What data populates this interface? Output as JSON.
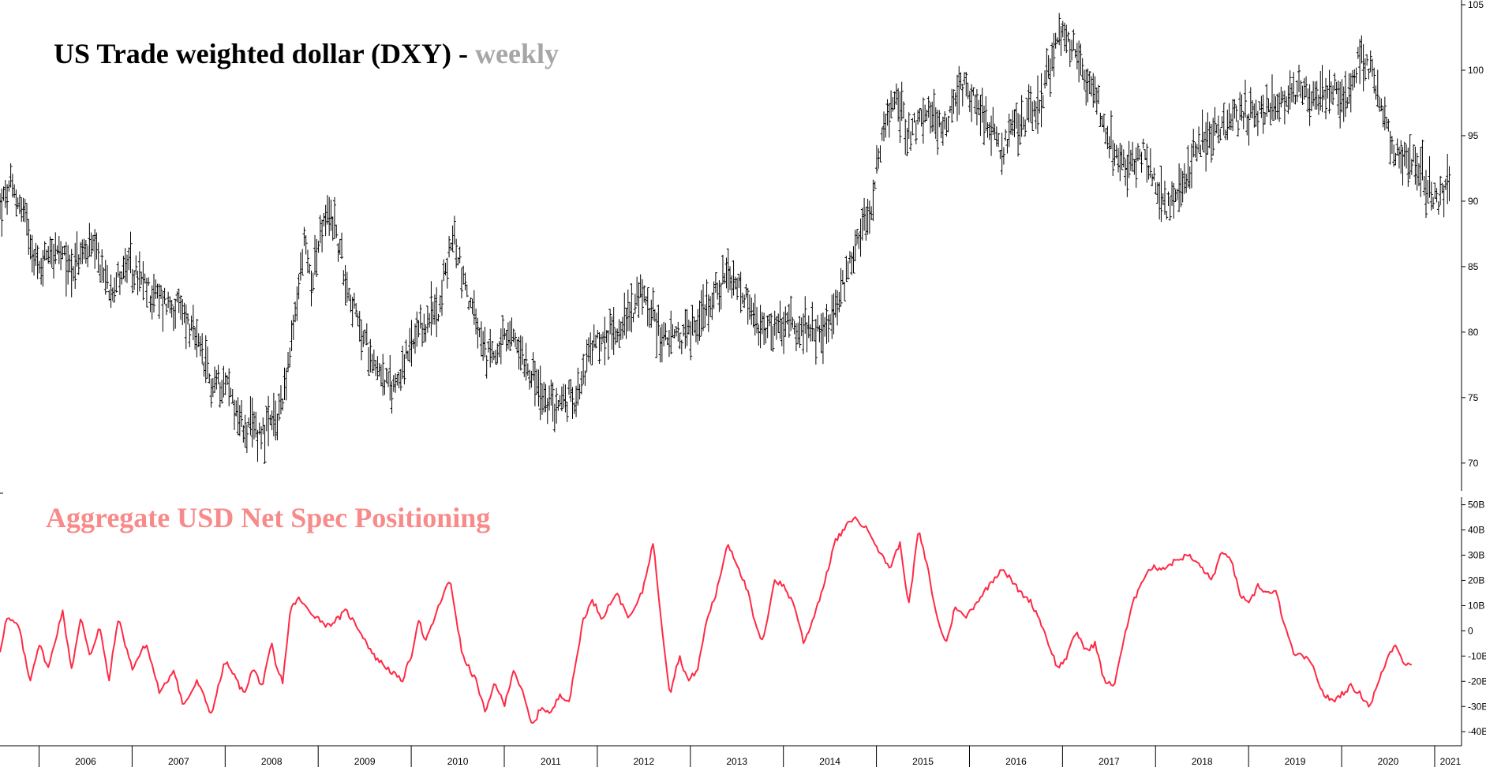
{
  "upper_title": {
    "main": "US Trade weighted dollar (DXY) - ",
    "suffix": "weekly"
  },
  "lower_title": "Aggregate USD Net Spec Positioning",
  "colors": {
    "price": "#000000",
    "positioning": "#ff2a45",
    "title_suffix": "#a6a6a6",
    "lower_title": "#f88a8a",
    "axis": "#000000"
  },
  "chart_data": [
    {
      "type": "ohlc",
      "title": "US Trade weighted dollar (DXY) - weekly",
      "frequency": "weekly",
      "ylim": [
        68,
        105
      ],
      "y_ticks": [
        "70",
        "75",
        "80",
        "85",
        "90",
        "95",
        "100",
        "105"
      ],
      "x_start": 2005.58,
      "x_end": 2021.17,
      "anchors": [
        [
          2005.58,
          89.5
        ],
        [
          2005.7,
          91.0
        ],
        [
          2005.85,
          89.0
        ],
        [
          2006.0,
          84.5
        ],
        [
          2006.1,
          86.5
        ],
        [
          2006.35,
          85.0
        ],
        [
          2006.55,
          86.5
        ],
        [
          2006.75,
          83.5
        ],
        [
          2006.95,
          85.0
        ],
        [
          2007.2,
          83.0
        ],
        [
          2007.45,
          82.0
        ],
        [
          2007.55,
          81.5
        ],
        [
          2007.7,
          79.0
        ],
        [
          2007.85,
          76.0
        ],
        [
          2008.0,
          76.5
        ],
        [
          2008.2,
          72.5
        ],
        [
          2008.4,
          72.5
        ],
        [
          2008.55,
          73.0
        ],
        [
          2008.7,
          78.0
        ],
        [
          2008.85,
          87.0
        ],
        [
          2008.92,
          84.0
        ],
        [
          2009.05,
          88.0
        ],
        [
          2009.15,
          89.0
        ],
        [
          2009.3,
          84.0
        ],
        [
          2009.45,
          80.0
        ],
        [
          2009.6,
          78.0
        ],
        [
          2009.78,
          75.5
        ],
        [
          2009.92,
          77.5
        ],
        [
          2010.1,
          80.0
        ],
        [
          2010.3,
          82.0
        ],
        [
          2010.45,
          87.5
        ],
        [
          2010.62,
          82.5
        ],
        [
          2010.8,
          78.0
        ],
        [
          2010.95,
          79.0
        ],
        [
          2011.1,
          79.5
        ],
        [
          2011.3,
          77.0
        ],
        [
          2011.42,
          74.5
        ],
        [
          2011.55,
          74.5
        ],
        [
          2011.75,
          75.0
        ],
        [
          2011.95,
          79.0
        ],
        [
          2012.1,
          79.5
        ],
        [
          2012.3,
          81.0
        ],
        [
          2012.5,
          83.0
        ],
        [
          2012.7,
          79.5
        ],
        [
          2012.9,
          79.5
        ],
        [
          2013.1,
          81.0
        ],
        [
          2013.25,
          83.0
        ],
        [
          2013.4,
          84.0
        ],
        [
          2013.55,
          83.0
        ],
        [
          2013.75,
          80.0
        ],
        [
          2014.0,
          80.5
        ],
        [
          2014.3,
          79.8
        ],
        [
          2014.5,
          80.5
        ],
        [
          2014.62,
          83.0
        ],
        [
          2014.8,
          87.5
        ],
        [
          2014.95,
          89.5
        ],
        [
          2015.05,
          94.5
        ],
        [
          2015.2,
          98.0
        ],
        [
          2015.35,
          95.5
        ],
        [
          2015.55,
          96.5
        ],
        [
          2015.75,
          96.0
        ],
        [
          2015.9,
          99.0
        ],
        [
          2016.1,
          97.5
        ],
        [
          2016.35,
          94.0
        ],
        [
          2016.55,
          96.0
        ],
        [
          2016.75,
          97.5
        ],
        [
          2016.92,
          101.5
        ],
        [
          2017.0,
          103.0
        ],
        [
          2017.15,
          101.0
        ],
        [
          2017.35,
          98.5
        ],
        [
          2017.55,
          93.5
        ],
        [
          2017.7,
          92.5
        ],
        [
          2017.85,
          94.0
        ],
        [
          2017.95,
          92.5
        ],
        [
          2018.1,
          89.5
        ],
        [
          2018.2,
          90.0
        ],
        [
          2018.3,
          91.0
        ],
        [
          2018.45,
          94.5
        ],
        [
          2018.65,
          95.0
        ],
        [
          2018.85,
          96.5
        ],
        [
          2019.1,
          96.5
        ],
        [
          2019.3,
          97.5
        ],
        [
          2019.5,
          98.5
        ],
        [
          2019.7,
          98.0
        ],
        [
          2019.9,
          98.5
        ],
        [
          2020.0,
          97.5
        ],
        [
          2020.1,
          99.0
        ],
        [
          2020.2,
          101.0
        ],
        [
          2020.32,
          100.0
        ],
        [
          2020.45,
          96.0
        ],
        [
          2020.6,
          93.5
        ],
        [
          2020.75,
          93.5
        ],
        [
          2020.9,
          91.5
        ],
        [
          2021.0,
          90.0
        ],
        [
          2021.1,
          90.5
        ],
        [
          2021.17,
          92.0
        ]
      ]
    },
    {
      "type": "line",
      "title": "Aggregate USD Net Spec Positioning",
      "ylim": [
        -44,
        53
      ],
      "y_ticks": [
        "50B",
        "40B",
        "30B",
        "20B",
        "10B",
        "0",
        "-10B",
        "-20B",
        "-30B",
        "-40B"
      ],
      "y_tick_values": [
        50,
        40,
        30,
        20,
        10,
        0,
        -10,
        -20,
        -30,
        -40
      ],
      "x_start": 2005.58,
      "x_end": 2021.17,
      "values": [
        [
          2005.58,
          -8
        ],
        [
          2005.65,
          5
        ],
        [
          2005.78,
          2
        ],
        [
          2005.9,
          -20
        ],
        [
          2006.0,
          -5
        ],
        [
          2006.1,
          -15
        ],
        [
          2006.25,
          8
        ],
        [
          2006.35,
          -15
        ],
        [
          2006.45,
          5
        ],
        [
          2006.55,
          -10
        ],
        [
          2006.65,
          2
        ],
        [
          2006.75,
          -20
        ],
        [
          2006.85,
          5
        ],
        [
          2007.0,
          -15
        ],
        [
          2007.15,
          -5
        ],
        [
          2007.3,
          -25
        ],
        [
          2007.45,
          -15
        ],
        [
          2007.55,
          -30
        ],
        [
          2007.7,
          -20
        ],
        [
          2007.85,
          -33
        ],
        [
          2008.0,
          -12
        ],
        [
          2008.1,
          -18
        ],
        [
          2008.2,
          -25
        ],
        [
          2008.3,
          -15
        ],
        [
          2008.4,
          -22
        ],
        [
          2008.5,
          -5
        ],
        [
          2008.55,
          -15
        ],
        [
          2008.62,
          -20
        ],
        [
          2008.7,
          8
        ],
        [
          2008.78,
          13
        ],
        [
          2008.9,
          8
        ],
        [
          2009.0,
          5
        ],
        [
          2009.1,
          2
        ],
        [
          2009.22,
          5
        ],
        [
          2009.3,
          8
        ],
        [
          2009.45,
          0
        ],
        [
          2009.6,
          -10
        ],
        [
          2009.75,
          -15
        ],
        [
          2009.9,
          -20
        ],
        [
          2010.0,
          -10
        ],
        [
          2010.08,
          5
        ],
        [
          2010.15,
          -5
        ],
        [
          2010.25,
          5
        ],
        [
          2010.35,
          15
        ],
        [
          2010.42,
          20
        ],
        [
          2010.55,
          -10
        ],
        [
          2010.7,
          -20
        ],
        [
          2010.8,
          -33
        ],
        [
          2010.9,
          -20
        ],
        [
          2011.0,
          -30
        ],
        [
          2011.1,
          -15
        ],
        [
          2011.2,
          -25
        ],
        [
          2011.3,
          -38
        ],
        [
          2011.4,
          -30
        ],
        [
          2011.5,
          -33
        ],
        [
          2011.6,
          -25
        ],
        [
          2011.7,
          -28
        ],
        [
          2011.85,
          5
        ],
        [
          2011.95,
          12
        ],
        [
          2012.05,
          5
        ],
        [
          2012.2,
          15
        ],
        [
          2012.35,
          5
        ],
        [
          2012.48,
          15
        ],
        [
          2012.6,
          35
        ],
        [
          2012.7,
          0
        ],
        [
          2012.78,
          -25
        ],
        [
          2012.88,
          -10
        ],
        [
          2012.98,
          -20
        ],
        [
          2013.08,
          -15
        ],
        [
          2013.18,
          5
        ],
        [
          2013.28,
          15
        ],
        [
          2013.4,
          35
        ],
        [
          2013.52,
          25
        ],
        [
          2013.62,
          15
        ],
        [
          2013.7,
          2
        ],
        [
          2013.78,
          -5
        ],
        [
          2013.9,
          20
        ],
        [
          2014.0,
          18
        ],
        [
          2014.12,
          10
        ],
        [
          2014.22,
          -5
        ],
        [
          2014.32,
          5
        ],
        [
          2014.45,
          20
        ],
        [
          2014.55,
          35
        ],
        [
          2014.65,
          40
        ],
        [
          2014.75,
          45
        ],
        [
          2014.85,
          42
        ],
        [
          2014.95,
          38
        ],
        [
          2015.05,
          30
        ],
        [
          2015.15,
          25
        ],
        [
          2015.25,
          35
        ],
        [
          2015.35,
          10
        ],
        [
          2015.45,
          40
        ],
        [
          2015.55,
          25
        ],
        [
          2015.65,
          5
        ],
        [
          2015.75,
          -5
        ],
        [
          2015.85,
          10
        ],
        [
          2015.95,
          5
        ],
        [
          2016.05,
          10
        ],
        [
          2016.15,
          15
        ],
        [
          2016.25,
          20
        ],
        [
          2016.35,
          25
        ],
        [
          2016.45,
          20
        ],
        [
          2016.55,
          15
        ],
        [
          2016.65,
          12
        ],
        [
          2016.75,
          5
        ],
        [
          2016.85,
          -5
        ],
        [
          2016.95,
          -15
        ],
        [
          2017.05,
          -10
        ],
        [
          2017.15,
          0
        ],
        [
          2017.25,
          -8
        ],
        [
          2017.35,
          -5
        ],
        [
          2017.45,
          -20
        ],
        [
          2017.55,
          -22
        ],
        [
          2017.65,
          -5
        ],
        [
          2017.75,
          10
        ],
        [
          2017.85,
          20
        ],
        [
          2017.95,
          25
        ],
        [
          2018.1,
          25
        ],
        [
          2018.22,
          28
        ],
        [
          2018.35,
          30
        ],
        [
          2018.5,
          25
        ],
        [
          2018.6,
          20
        ],
        [
          2018.7,
          30
        ],
        [
          2018.8,
          30
        ],
        [
          2018.9,
          15
        ],
        [
          2019.0,
          10
        ],
        [
          2019.1,
          18
        ],
        [
          2019.2,
          15
        ],
        [
          2019.3,
          15
        ],
        [
          2019.4,
          0
        ],
        [
          2019.5,
          -10
        ],
        [
          2019.6,
          -10
        ],
        [
          2019.7,
          -15
        ],
        [
          2019.8,
          -25
        ],
        [
          2019.9,
          -28
        ],
        [
          2020.0,
          -25
        ],
        [
          2020.1,
          -22
        ],
        [
          2020.2,
          -25
        ],
        [
          2020.3,
          -30
        ],
        [
          2020.4,
          -20
        ],
        [
          2020.5,
          -10
        ],
        [
          2020.58,
          -5
        ],
        [
          2020.66,
          -12
        ],
        [
          2020.75,
          -14
        ]
      ]
    }
  ],
  "x_axis": {
    "years": [
      "2006",
      "2007",
      "2008",
      "2009",
      "2010",
      "2011",
      "2012",
      "2013",
      "2014",
      "2015",
      "2016",
      "2017",
      "2018",
      "2019",
      "2020",
      "2021"
    ]
  }
}
